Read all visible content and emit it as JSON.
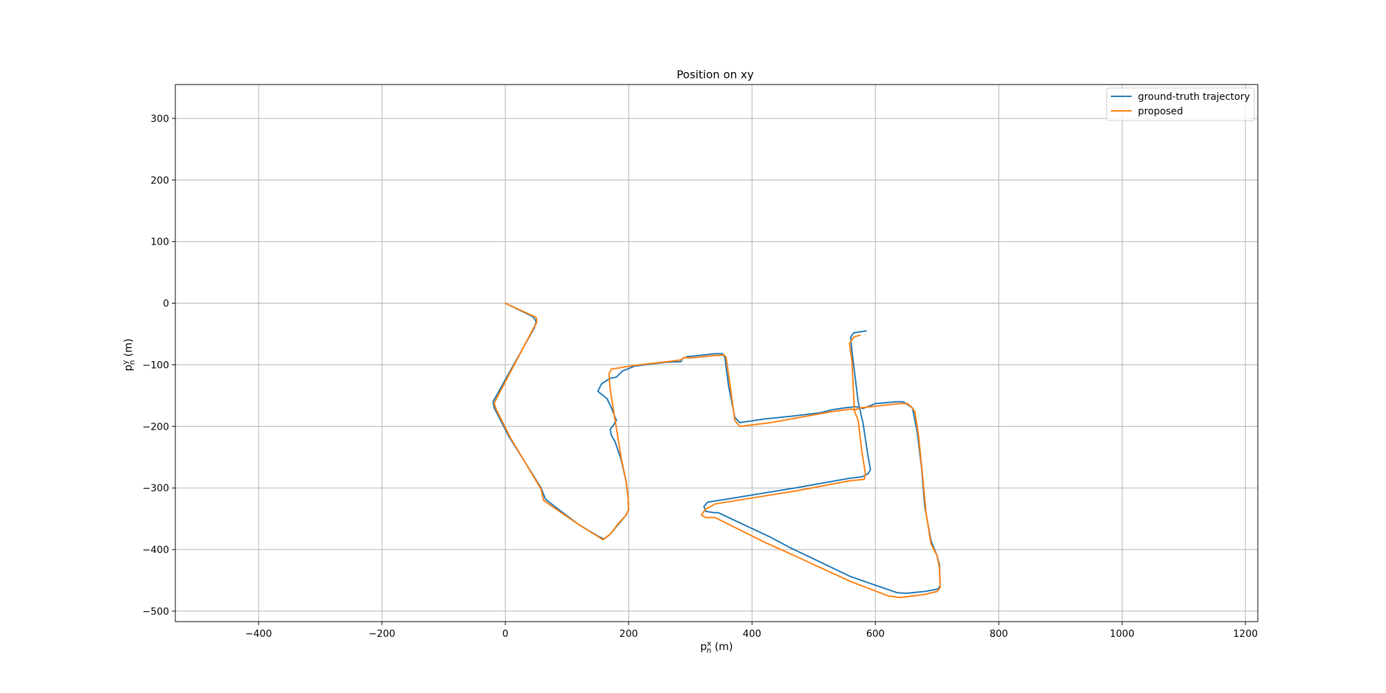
{
  "chart_data": {
    "type": "line",
    "title": "Position on xy",
    "xlabel": "p_n^x (m)",
    "ylabel": "p_n^y (m)",
    "xlim": [
      -535,
      1220
    ],
    "ylim": [
      -517,
      355
    ],
    "xticks": [
      -400,
      -200,
      0,
      200,
      400,
      600,
      800,
      1000,
      1200
    ],
    "yticks": [
      300,
      200,
      100,
      0,
      -100,
      -200,
      -300,
      -400,
      -500
    ],
    "xtick_labels": [
      "−400",
      "−200",
      "0",
      "200",
      "400",
      "600",
      "800",
      "1000",
      "1200"
    ],
    "ytick_labels": [
      "300",
      "200",
      "100",
      "0",
      "−100",
      "−200",
      "−300",
      "−400",
      "−500"
    ],
    "grid": true,
    "legend": "top-right",
    "series": [
      {
        "name": "ground-truth trajectory",
        "color": "#1f77b4",
        "x": [
          0,
          45,
          50,
          47,
          -20,
          -18,
          5,
          58,
          65,
          80,
          120,
          150,
          160,
          170,
          185,
          195,
          200,
          199,
          196,
          188,
          178,
          172,
          170,
          176,
          180,
          172,
          165,
          150,
          156,
          170,
          180,
          190,
          210,
          260,
          285,
          287,
          295,
          340,
          352,
          356,
          362,
          372,
          380,
          420,
          460,
          510,
          530,
          550,
          568,
          580,
          600,
          635,
          645,
          650,
          660,
          668,
          675,
          680,
          690,
          700,
          704,
          705,
          702,
          680,
          650,
          635,
          560,
          460,
          430,
          345,
          338,
          325,
          322,
          328,
          360,
          470,
          560,
          578,
          588,
          592,
          588,
          580,
          572,
          562,
          560,
          565,
          585
        ],
        "y": [
          0,
          -22,
          -30,
          -40,
          -160,
          -170,
          -215,
          -300,
          -318,
          -330,
          -360,
          -378,
          -383,
          -375,
          -357,
          -345,
          -335,
          -315,
          -290,
          -255,
          -225,
          -215,
          -205,
          -197,
          -190,
          -170,
          -155,
          -143,
          -131,
          -122,
          -120,
          -110,
          -102,
          -96,
          -95,
          -90,
          -87,
          -82,
          -82,
          -88,
          -135,
          -185,
          -194,
          -188,
          -184,
          -178,
          -173,
          -170,
          -168,
          -171,
          -163,
          -160,
          -160,
          -163,
          -170,
          -210,
          -268,
          -330,
          -385,
          -410,
          -425,
          -458,
          -464,
          -468,
          -471,
          -470,
          -444,
          -396,
          -380,
          -340,
          -340,
          -338,
          -330,
          -323,
          -318,
          -300,
          -284,
          -282,
          -277,
          -270,
          -248,
          -195,
          -160,
          -78,
          -55,
          -48,
          -45
        ]
      },
      {
        "name": "proposed",
        "color": "#ff7f0e",
        "x": [
          0,
          50,
          51,
          45,
          -18,
          -15,
          8,
          58,
          62,
          76,
          120,
          152,
          158,
          170,
          184,
          196,
          200,
          199,
          196,
          188,
          178,
          170,
          168,
          172,
          210,
          270,
          285,
          290,
          300,
          340,
          355,
          358,
          364,
          372,
          380,
          430,
          480,
          530,
          560,
          568,
          575,
          640,
          652,
          658,
          664,
          670,
          676,
          682,
          690,
          700,
          704,
          705,
          700,
          680,
          640,
          620,
          560,
          460,
          420,
          340,
          325,
          318,
          324,
          340,
          470,
          560,
          582,
          584,
          578,
          572,
          566,
          562,
          558,
          565,
          575
        ],
        "y": [
          0,
          -23,
          -31,
          -42,
          -162,
          -172,
          -218,
          -302,
          -320,
          -330,
          -360,
          -380,
          -384,
          -375,
          -357,
          -344,
          -334,
          -315,
          -290,
          -252,
          -190,
          -140,
          -115,
          -107,
          -101,
          -94,
          -92,
          -88,
          -89,
          -85,
          -84,
          -88,
          -130,
          -190,
          -200,
          -194,
          -185,
          -176,
          -172,
          -173,
          -170,
          -163,
          -163,
          -168,
          -176,
          -215,
          -275,
          -340,
          -390,
          -410,
          -430,
          -462,
          -468,
          -473,
          -478,
          -475,
          -452,
          -406,
          -388,
          -348,
          -348,
          -344,
          -335,
          -326,
          -305,
          -288,
          -286,
          -278,
          -240,
          -190,
          -175,
          -95,
          -65,
          -55,
          -52
        ]
      }
    ]
  }
}
